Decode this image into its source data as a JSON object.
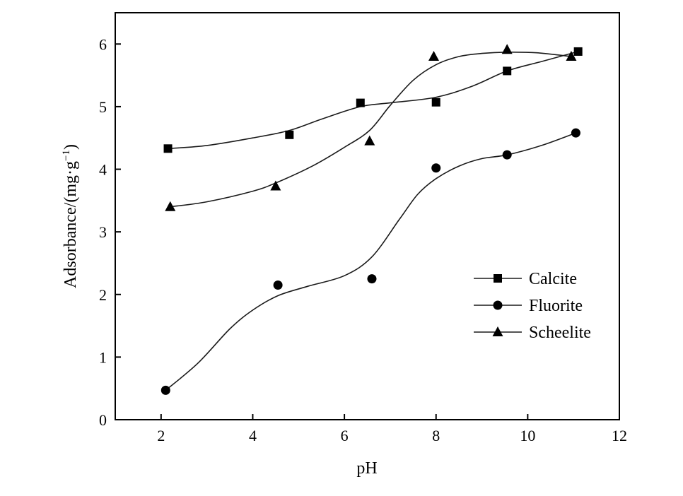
{
  "chart_data": {
    "type": "scatter",
    "title": "",
    "xlabel": "pH",
    "ylabel": "Adsorbance/(mg·g",
    "ylabel_sup": "−1",
    "ylabel_close": ")",
    "xlim": [
      1,
      12
    ],
    "ylim": [
      0,
      6.5
    ],
    "xticks": [
      2,
      4,
      6,
      8,
      10,
      12
    ],
    "yticks": [
      0,
      1,
      2,
      3,
      4,
      5,
      6
    ],
    "grid": false,
    "legend_position": "right",
    "series": [
      {
        "name": "Calcite",
        "marker": "square",
        "x": [
          2.15,
          4.8,
          6.35,
          8.0,
          9.55,
          11.1
        ],
        "y": [
          4.33,
          4.55,
          5.06,
          5.07,
          5.57,
          5.88
        ]
      },
      {
        "name": "Fluorite",
        "marker": "circle",
        "x": [
          2.1,
          4.55,
          6.6,
          8.0,
          9.55,
          11.05
        ],
        "y": [
          0.47,
          2.15,
          2.25,
          4.02,
          4.23,
          4.58
        ]
      },
      {
        "name": "Scheelite",
        "marker": "triangle",
        "x": [
          2.2,
          4.5,
          6.55,
          7.95,
          9.55,
          10.95
        ],
        "y": [
          3.4,
          3.73,
          4.45,
          5.8,
          5.91,
          5.8
        ]
      }
    ],
    "fit_curves": [
      {
        "series": "Calcite",
        "x": [
          2.15,
          3.0,
          4.0,
          4.8,
          5.5,
          6.35,
          7.0,
          8.0,
          8.8,
          9.55,
          10.3,
          11.1
        ],
        "y": [
          4.33,
          4.38,
          4.5,
          4.62,
          4.8,
          5.0,
          5.06,
          5.15,
          5.33,
          5.57,
          5.72,
          5.88
        ]
      },
      {
        "series": "Fluorite",
        "x": [
          2.1,
          2.8,
          3.5,
          4.0,
          4.55,
          5.2,
          6.0,
          6.6,
          7.2,
          7.6,
          8.0,
          8.5,
          9.0,
          9.55,
          10.3,
          11.05
        ],
        "y": [
          0.47,
          0.9,
          1.45,
          1.75,
          1.98,
          2.13,
          2.3,
          2.6,
          3.2,
          3.6,
          3.85,
          4.05,
          4.17,
          4.23,
          4.38,
          4.58
        ]
      },
      {
        "series": "Scheelite",
        "x": [
          2.2,
          3.0,
          4.0,
          4.5,
          5.3,
          6.0,
          6.55,
          7.0,
          7.5,
          8.0,
          8.5,
          9.0,
          9.55,
          10.2,
          10.95
        ],
        "y": [
          3.4,
          3.48,
          3.65,
          3.78,
          4.05,
          4.35,
          4.62,
          5.02,
          5.42,
          5.67,
          5.8,
          5.85,
          5.87,
          5.86,
          5.8
        ]
      }
    ]
  }
}
